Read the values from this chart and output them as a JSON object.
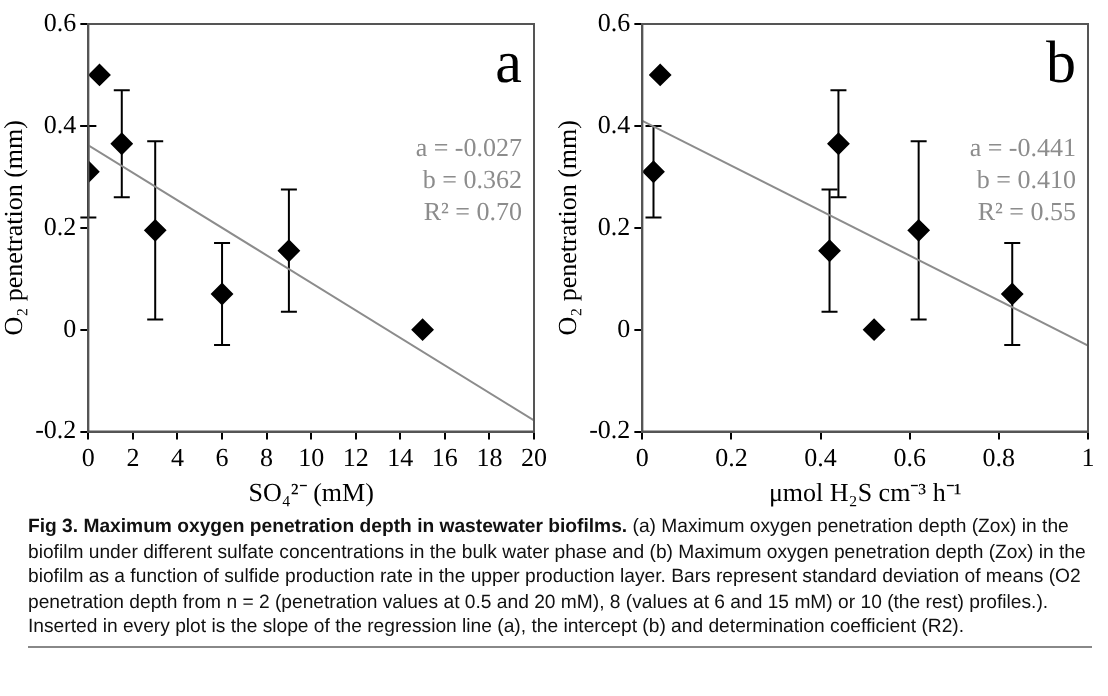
{
  "chart_data": [
    {
      "type": "scatter",
      "title": "a",
      "xlabel": "SO₄²⁻ (mM)",
      "ylabel": "O₂ penetration (mm)",
      "xlim": [
        0,
        20
      ],
      "xticks": [
        0,
        2,
        4,
        6,
        8,
        10,
        12,
        14,
        16,
        18,
        20
      ],
      "ylim": [
        -0.2,
        0.6
      ],
      "yticks": [
        -0.2,
        0,
        0.2,
        0.4,
        0.6
      ],
      "grid": false,
      "legend": false,
      "annotations": [
        "a = -0.027",
        "b = 0.362",
        "R² = 0.70"
      ],
      "series": [
        {
          "type": "line",
          "color": "#8c8c8c",
          "x": [
            0,
            20
          ],
          "values": [
            0.362,
            -0.178
          ]
        },
        {
          "type": "scatter",
          "color": "#000000",
          "marker": "diamond",
          "x": [
            0,
            0.5,
            1.5,
            3,
            6,
            9,
            15
          ],
          "values": [
            0.31,
            0.5,
            0.365,
            0.195,
            0.07,
            0.155,
            0
          ],
          "errors": [
            [
              0.22,
              0.4
            ],
            null,
            [
              0.26,
              0.47
            ],
            [
              0.02,
              0.37
            ],
            [
              -0.03,
              0.17
            ],
            [
              0.035,
              0.275
            ],
            null
          ]
        }
      ]
    },
    {
      "type": "scatter",
      "title": "b",
      "xlabel": "μmol H₂S cm⁻³ h⁻¹",
      "ylabel": "O₂ penetration (mm)",
      "xlim": [
        0,
        1
      ],
      "xticks": [
        0,
        0.2,
        0.4,
        0.6,
        0.8,
        1
      ],
      "ylim": [
        -0.2,
        0.6
      ],
      "yticks": [
        -0.2,
        0,
        0.2,
        0.4,
        0.6
      ],
      "grid": false,
      "legend": false,
      "annotations": [
        "a = -0.441",
        "b = 0.410",
        "R² = 0.55"
      ],
      "series": [
        {
          "type": "line",
          "color": "#8c8c8c",
          "x": [
            0,
            1
          ],
          "values": [
            0.41,
            -0.031
          ]
        },
        {
          "type": "scatter",
          "color": "#000000",
          "marker": "diamond",
          "x": [
            0.025,
            0.04,
            0.44,
            0.42,
            0.52,
            0.62,
            0.83
          ],
          "values": [
            0.31,
            0.5,
            0.365,
            0.155,
            0,
            0.195,
            0.07
          ],
          "errors": [
            [
              0.22,
              0.4
            ],
            null,
            [
              0.26,
              0.47
            ],
            [
              0.035,
              0.275
            ],
            null,
            [
              0.02,
              0.37
            ],
            [
              -0.03,
              0.17
            ]
          ]
        }
      ]
    },
    {
      "type": "other",
      "title": "Fig 3. Maximum oxygen penetration depth in wastewater biofilms.",
      "annotations": [
        "(a) Maximum oxygen penetration depth (Zox) in the biofilm under different sulfate concentrations in the bulk water phase and (b) Maximum oxygen penetration depth (Zox) in the biofilm as a function of sulfide production rate in the upper production layer. Bars represent standard deviation of means (O2 penetration depth from n = 2 (penetration values at 0.5 and 20 mM), 8 (values at 6 and 15 mM) or 10 (the rest) profiles.). Inserted in every plot is the slope of the regression line (a), the intercept (b) and determination coefficient (R2)."
      ]
    }
  ]
}
